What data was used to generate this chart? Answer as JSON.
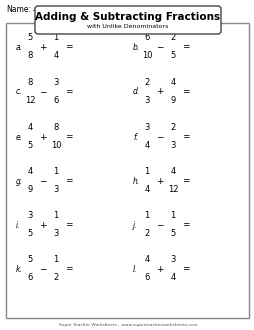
{
  "title": "Adding & Subtracting Fractions",
  "subtitle": "with Unlike Denominators",
  "name_label": "Name:",
  "footer": "Super Teacher Worksheets - www.superteacherworksheets.com",
  "background": "#ffffff",
  "problems": [
    {
      "label": "a.",
      "n1": "5",
      "d1": "8",
      "op": "+",
      "n2": "1",
      "d2": "4"
    },
    {
      "label": "b.",
      "n1": "6",
      "d1": "10",
      "op": "−",
      "n2": "2",
      "d2": "5"
    },
    {
      "label": "c.",
      "n1": "8",
      "d1": "12",
      "op": "−",
      "n2": "3",
      "d2": "6"
    },
    {
      "label": "d.",
      "n1": "2",
      "d1": "3",
      "op": "+",
      "n2": "4",
      "d2": "9"
    },
    {
      "label": "e.",
      "n1": "4",
      "d1": "5",
      "op": "+",
      "n2": "8",
      "d2": "10"
    },
    {
      "label": "f.",
      "n1": "3",
      "d1": "4",
      "op": "−",
      "n2": "2",
      "d2": "3"
    },
    {
      "label": "g.",
      "n1": "4",
      "d1": "9",
      "op": "−",
      "n2": "1",
      "d2": "3"
    },
    {
      "label": "h.",
      "n1": "1",
      "d1": "4",
      "op": "+",
      "n2": "4",
      "d2": "12"
    },
    {
      "label": "i.",
      "n1": "3",
      "d1": "5",
      "op": "+",
      "n2": "1",
      "d2": "3"
    },
    {
      "label": "j.",
      "n1": "1",
      "d1": "2",
      "op": "−",
      "n2": "1",
      "d2": "5"
    },
    {
      "label": "k.",
      "n1": "5",
      "d1": "6",
      "op": "−",
      "n2": "1",
      "d2": "2"
    },
    {
      "label": "l.",
      "n1": "4",
      "d1": "6",
      "op": "+",
      "n2": "3",
      "d2": "4"
    }
  ]
}
